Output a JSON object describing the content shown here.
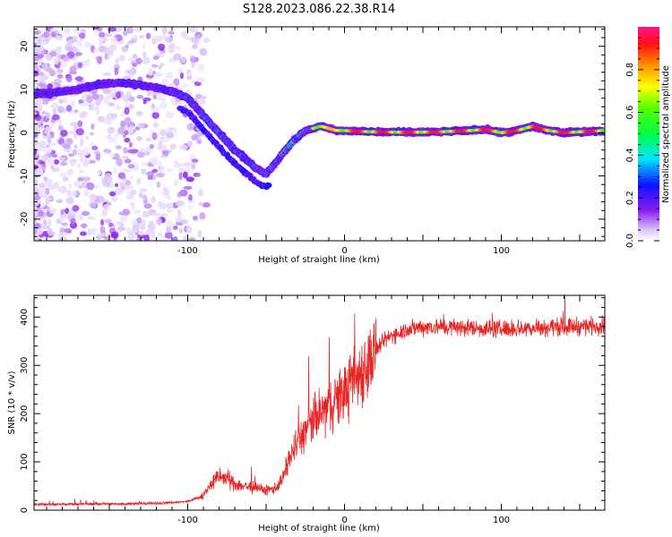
{
  "title": "S128.2023.086.22.38.R14",
  "chart_data": [
    {
      "type": "heatmap",
      "xlabel": "Height of straight line (km)",
      "ylabel": "Frequency (Hz)",
      "xlim": [
        -198,
        166
      ],
      "ylim": [
        -25,
        24.5
      ],
      "xticks": [
        -100,
        0,
        100
      ],
      "yticks": [
        -20,
        -10,
        0,
        10,
        20
      ],
      "colorbar": {
        "label": "Normalized spectral amplitude",
        "range": [
          0,
          1
        ],
        "ticks": [
          0.0,
          0.2,
          0.4,
          0.6,
          0.8
        ]
      },
      "ridge": {
        "x": [
          -190,
          -180,
          -170,
          -160,
          -150,
          -140,
          -130,
          -120,
          -110,
          -100,
          -95,
          -90,
          -85,
          -80,
          -75,
          -70,
          -65,
          -60,
          -55,
          -50,
          -45,
          -40,
          -35,
          -30,
          -25,
          -20,
          -15,
          -10,
          -5,
          0,
          10,
          20,
          40,
          60,
          80,
          90,
          100,
          110,
          120,
          130,
          140,
          150,
          166
        ],
        "freq": [
          9,
          9.5,
          10,
          11,
          11.5,
          11.5,
          11,
          10.5,
          9.5,
          8,
          6,
          4,
          2,
          0,
          -2,
          -4,
          -5.5,
          -7,
          -8.5,
          -9.5,
          -7.5,
          -5,
          -3,
          -1,
          0.5,
          1,
          1.5,
          1,
          0.5,
          0.5,
          0.3,
          0.2,
          0.1,
          0.2,
          0.5,
          0.8,
          0,
          0.5,
          1.5,
          0.5,
          0,
          0.2,
          0.5
        ]
      }
    },
    {
      "type": "line",
      "xlabel": "Height of straight line (km)",
      "ylabel": "SNR (10 * v/v)",
      "xlim": [
        -198,
        166
      ],
      "ylim": [
        0,
        445
      ],
      "xticks": [
        -100,
        0,
        100
      ],
      "yticks": [
        0,
        100,
        200,
        300,
        400
      ],
      "color": "#e82323",
      "series": [
        {
          "x": [
            -198,
            -180,
            -160,
            -140,
            -120,
            -100,
            -90,
            -85,
            -80,
            -75,
            -70,
            -65,
            -60,
            -55,
            -50,
            -45,
            -40,
            -35,
            -30,
            -25,
            -20,
            -15,
            -10,
            -5,
            0,
            5,
            10,
            15,
            20,
            25,
            30,
            40,
            50,
            60,
            80,
            100,
            120,
            140,
            160,
            166
          ],
          "y": [
            12,
            12,
            13,
            13,
            14,
            18,
            30,
            55,
            70,
            65,
            55,
            50,
            48,
            45,
            40,
            45,
            60,
            110,
            140,
            165,
            185,
            200,
            215,
            230,
            245,
            265,
            285,
            305,
            330,
            350,
            362,
            375,
            380,
            380,
            378,
            375,
            378,
            380,
            382,
            385
          ]
        }
      ]
    }
  ]
}
